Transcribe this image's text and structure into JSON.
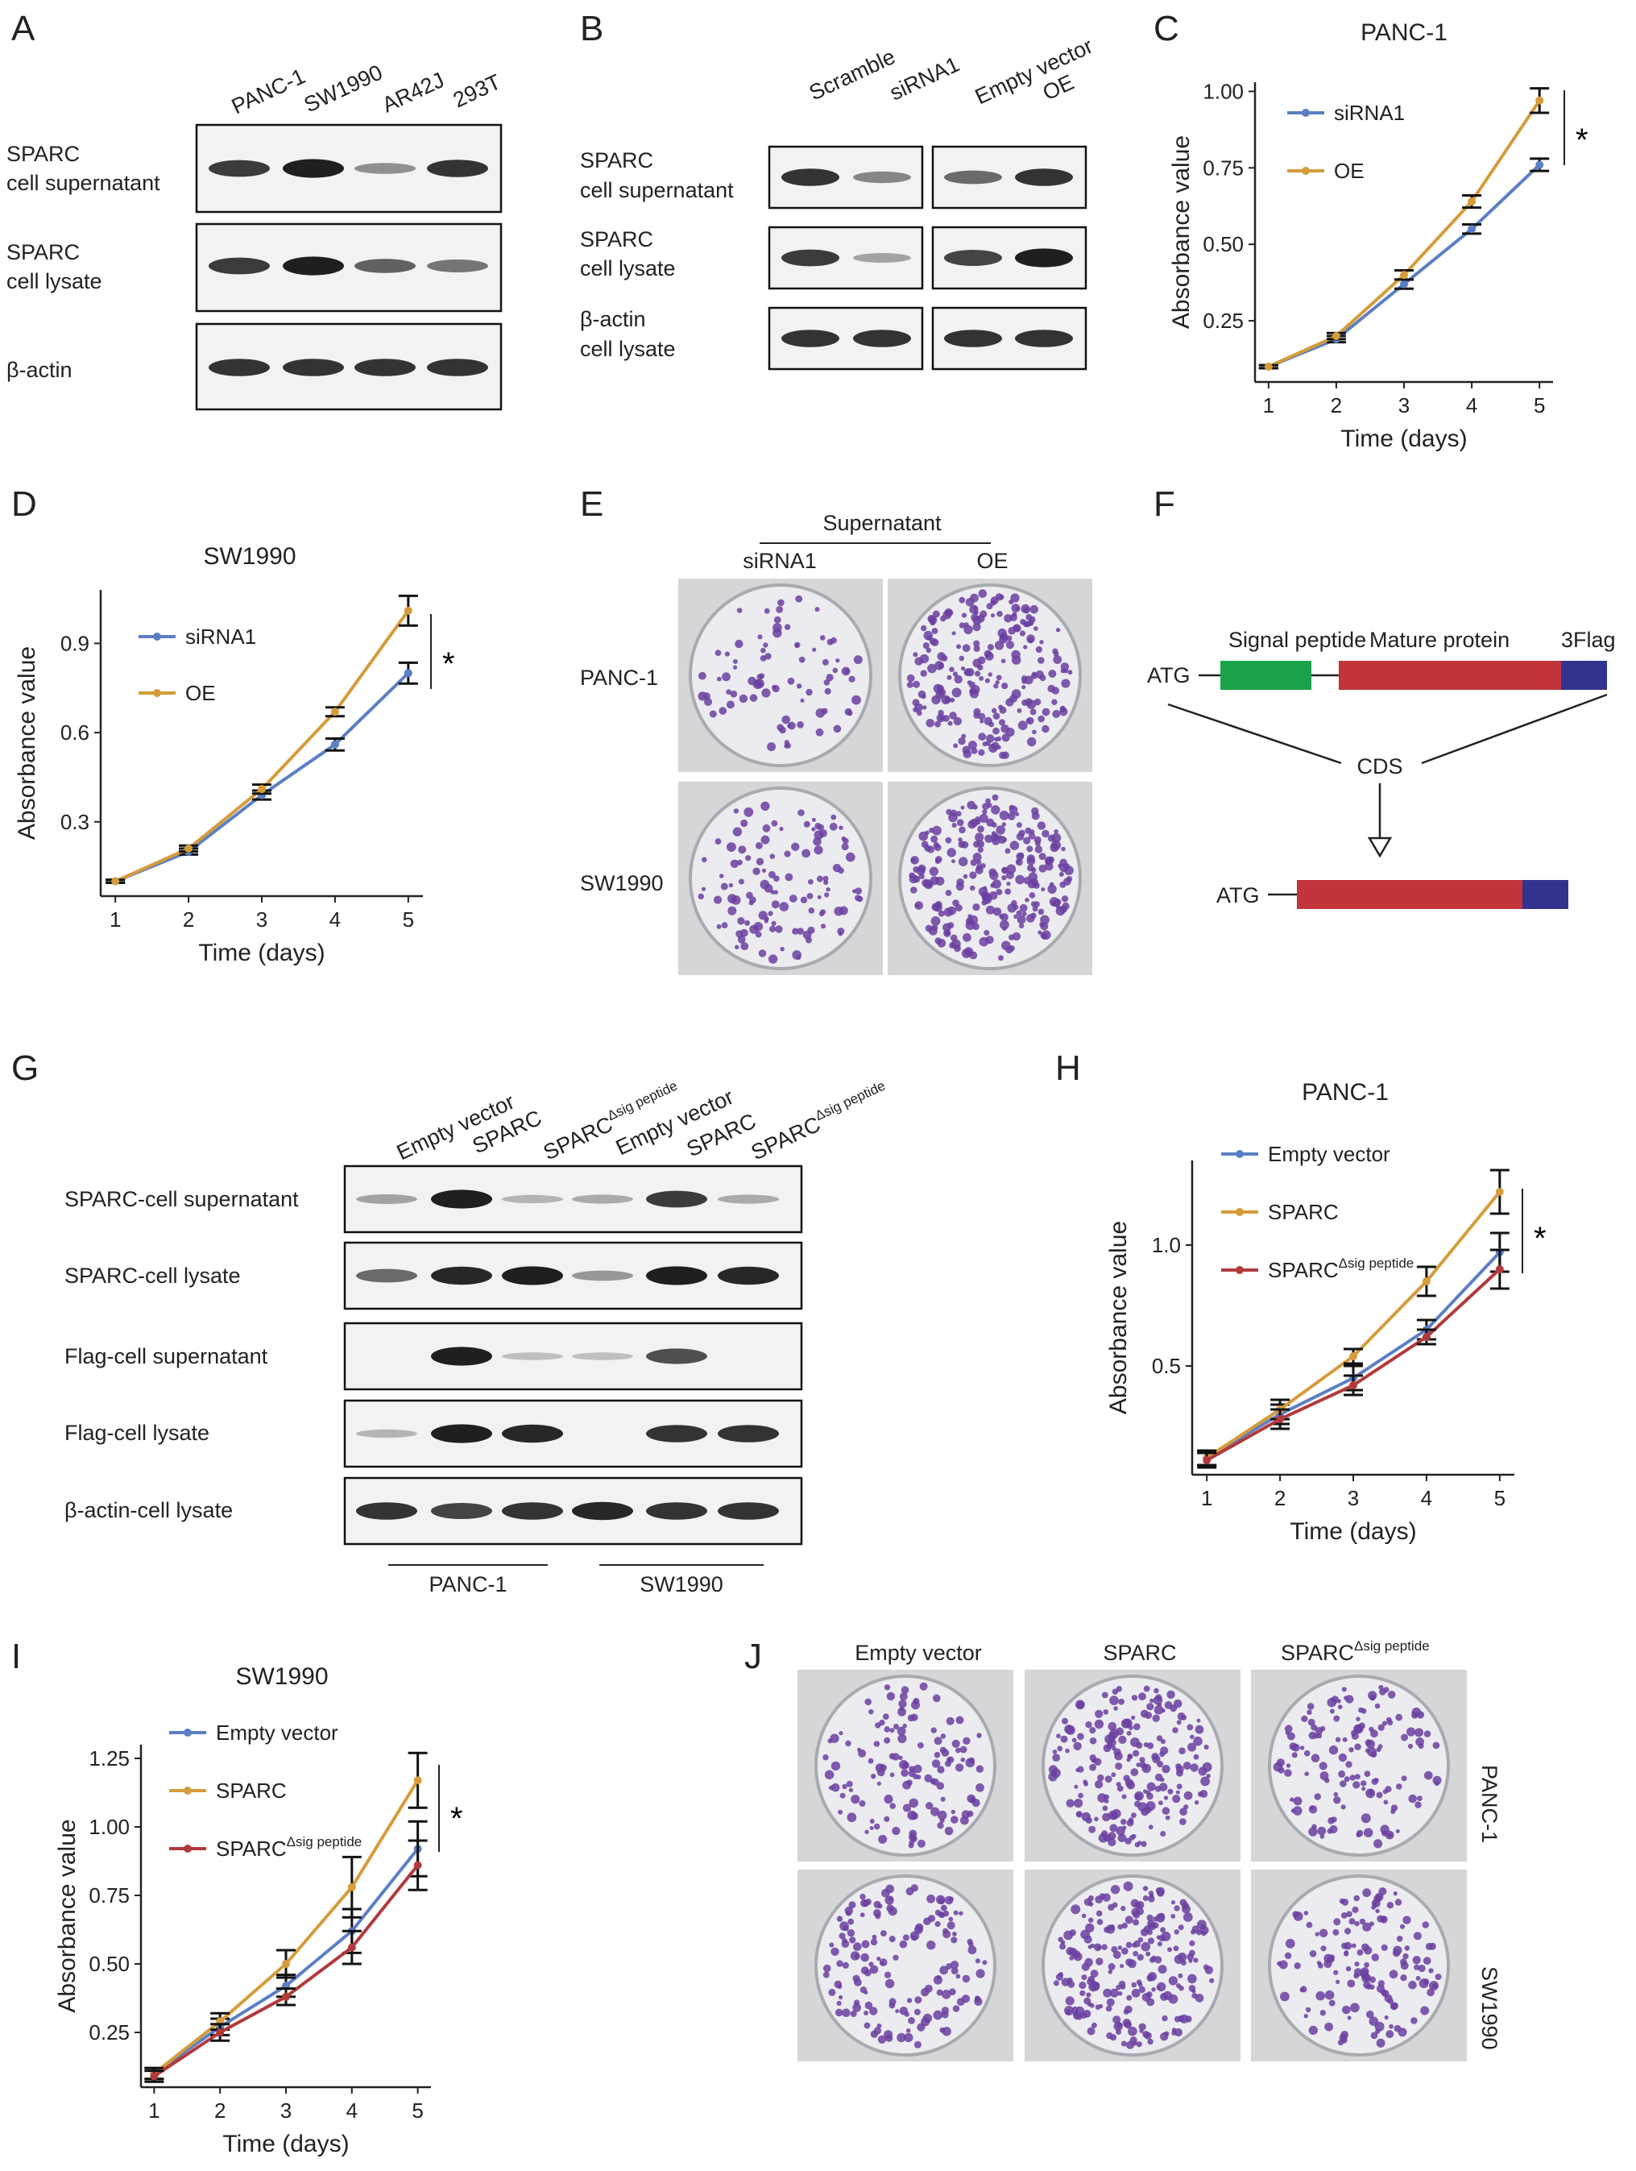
{
  "panel_letters": [
    "A",
    "B",
    "C",
    "D",
    "E",
    "F",
    "G",
    "H",
    "I",
    "J"
  ],
  "panelA": {
    "lanes": [
      "PANC-1",
      "SW1990",
      "AR42J",
      "293T"
    ],
    "rows": [
      {
        "l1": "SPARC",
        "l2": "cell supernatant",
        "bands": [
          0.8,
          0.95,
          0.35,
          0.85
        ]
      },
      {
        "l1": "SPARC",
        "l2": "cell lysate",
        "bands": [
          0.8,
          0.95,
          0.6,
          0.5
        ]
      },
      {
        "l1": "β-actin",
        "l2": "",
        "bands": [
          0.85,
          0.85,
          0.85,
          0.85
        ]
      }
    ]
  },
  "panelB": {
    "lanes": [
      "Scramble",
      "siRNA1",
      "Empty vector",
      "OE"
    ],
    "rows": [
      {
        "l1": "SPARC",
        "l2": "cell supernatant",
        "bands": [
          0.85,
          0.4,
          0.55,
          0.85
        ]
      },
      {
        "l1": "SPARC",
        "l2": "cell lysate",
        "bands": [
          0.8,
          0.25,
          0.75,
          0.95
        ]
      },
      {
        "l1": "β-actin",
        "l2": "cell lysate",
        "bands": [
          0.85,
          0.85,
          0.85,
          0.85
        ]
      }
    ]
  },
  "panelE": {
    "group": "Supernatant",
    "cols": [
      "siRNA1",
      "OE"
    ],
    "rows": [
      "PANC-1",
      "SW1990"
    ],
    "colony_density": [
      [
        0.25,
        0.85
      ],
      [
        0.4,
        0.95
      ]
    ]
  },
  "panelF": {
    "atg": "ATG",
    "signal": "Signal peptide",
    "mature": "Mature protein",
    "flag": "3Flag",
    "cds": "CDS",
    "colors": {
      "signal": "#1aa34a",
      "mature": "#c0343a",
      "flag": "#33338f"
    }
  },
  "panelG": {
    "lanes": [
      {
        "main": "Empty vector",
        "sup": ""
      },
      {
        "main": "SPARC",
        "sup": ""
      },
      {
        "main": "SPARC",
        "sup": "Δsig peptide"
      },
      {
        "main": "Empty vector",
        "sup": ""
      },
      {
        "main": "SPARC",
        "sup": ""
      },
      {
        "main": "SPARC",
        "sup": "Δsig peptide"
      }
    ],
    "rows": [
      {
        "label": "SPARC-cell supernatant",
        "bands": [
          0.25,
          0.95,
          0.15,
          0.2,
          0.8,
          0.2
        ]
      },
      {
        "label": "SPARC-cell lysate",
        "bands": [
          0.55,
          0.9,
          0.95,
          0.3,
          0.95,
          0.9
        ]
      },
      {
        "label": "Flag-cell supernatant",
        "bands": [
          0.0,
          0.95,
          0.1,
          0.1,
          0.7,
          0.0
        ]
      },
      {
        "label": "Flag-cell lysate",
        "bands": [
          0.15,
          0.95,
          0.9,
          0.0,
          0.85,
          0.85
        ]
      },
      {
        "label": "β-actin-cell lysate",
        "bands": [
          0.85,
          0.75,
          0.85,
          0.9,
          0.85,
          0.85
        ]
      }
    ],
    "groups": [
      "PANC-1",
      "SW1990"
    ]
  },
  "panelJ": {
    "cols": [
      {
        "main": "Empty vector",
        "sup": ""
      },
      {
        "main": "SPARC",
        "sup": ""
      },
      {
        "main": "SPARC",
        "sup": "Δsig peptide"
      }
    ],
    "rows": [
      "PANC-1",
      "SW1990"
    ],
    "colony_density": [
      [
        0.45,
        0.75,
        0.5
      ],
      [
        0.55,
        0.85,
        0.5
      ]
    ]
  },
  "chart_data": [
    {
      "panel": "C",
      "type": "line",
      "title": "PANC-1",
      "xlabel": "Time (days)",
      "ylabel": "Absorbance value",
      "x": [
        1,
        2,
        3,
        4,
        5
      ],
      "xlim": [
        0.8,
        5.2
      ],
      "ylim": [
        0.05,
        1.03
      ],
      "yticks": [
        0.25,
        0.5,
        0.75,
        1.0
      ],
      "ytick_labels": [
        "0.25",
        "0.50",
        "0.75",
        "1.00"
      ],
      "series": [
        {
          "name": "siRNA1",
          "color": "#5b7fc4",
          "values": [
            0.1,
            0.19,
            0.37,
            0.55,
            0.76
          ],
          "err": [
            0.005,
            0.01,
            0.015,
            0.015,
            0.02
          ]
        },
        {
          "name": "OE",
          "color": "#d59c3a",
          "values": [
            0.1,
            0.2,
            0.4,
            0.64,
            0.97
          ],
          "err": [
            0.005,
            0.01,
            0.015,
            0.02,
            0.04
          ]
        }
      ],
      "significance": "*"
    },
    {
      "panel": "D",
      "type": "line",
      "title": "SW1990",
      "xlabel": "Time (days)",
      "ylabel": "Absorbance value",
      "x": [
        1,
        2,
        3,
        4,
        5
      ],
      "xlim": [
        0.8,
        5.2
      ],
      "ylim": [
        0.05,
        1.08
      ],
      "yticks": [
        0.3,
        0.6,
        0.9
      ],
      "ytick_labels": [
        "0.3",
        "0.6",
        "0.9"
      ],
      "series": [
        {
          "name": "siRNA1",
          "color": "#5b7fc4",
          "values": [
            0.1,
            0.2,
            0.39,
            0.56,
            0.8
          ],
          "err": [
            0.005,
            0.01,
            0.015,
            0.02,
            0.035
          ]
        },
        {
          "name": "OE",
          "color": "#d59c3a",
          "values": [
            0.1,
            0.21,
            0.41,
            0.67,
            1.01
          ],
          "err": [
            0.005,
            0.01,
            0.015,
            0.015,
            0.05
          ]
        }
      ],
      "significance": "*"
    },
    {
      "panel": "H",
      "type": "line",
      "title": "PANC-1",
      "xlabel": "Time (days)",
      "ylabel": "Absorbance value",
      "x": [
        1,
        2,
        3,
        4,
        5
      ],
      "xlim": [
        0.8,
        5.2
      ],
      "ylim": [
        0.05,
        1.35
      ],
      "yticks": [
        0.5,
        1.0
      ],
      "ytick_labels": [
        "0.5",
        "1.0"
      ],
      "series": [
        {
          "name": "Empty vector",
          "sup": "",
          "color": "#5b7fc4",
          "values": [
            0.12,
            0.3,
            0.45,
            0.65,
            0.97
          ],
          "err": [
            0.03,
            0.04,
            0.05,
            0.04,
            0.08
          ]
        },
        {
          "name": "SPARC",
          "sup": "",
          "color": "#d59c3a",
          "values": [
            0.12,
            0.32,
            0.54,
            0.85,
            1.22
          ],
          "err": [
            0.03,
            0.04,
            0.03,
            0.06,
            0.09
          ]
        },
        {
          "name": "SPARC",
          "sup": "Δsig peptide",
          "color": "#b2393b",
          "values": [
            0.11,
            0.28,
            0.42,
            0.62,
            0.9
          ],
          "err": [
            0.03,
            0.04,
            0.04,
            0.03,
            0.08
          ]
        }
      ],
      "significance": "*"
    },
    {
      "panel": "I",
      "type": "line",
      "title": "SW1990",
      "xlabel": "Time (days)",
      "ylabel": "Absorbance value",
      "x": [
        1,
        2,
        3,
        4,
        5
      ],
      "xlim": [
        0.8,
        5.2
      ],
      "ylim": [
        0.05,
        1.3
      ],
      "yticks": [
        0.25,
        0.5,
        0.75,
        1.0,
        1.25
      ],
      "ytick_labels": [
        "0.25",
        "0.50",
        "0.75",
        "1.00",
        "1.25"
      ],
      "series": [
        {
          "name": "Empty vector",
          "sup": "",
          "color": "#5b7fc4",
          "values": [
            0.1,
            0.27,
            0.42,
            0.62,
            0.92
          ],
          "err": [
            0.02,
            0.03,
            0.04,
            0.08,
            0.1
          ]
        },
        {
          "name": "SPARC",
          "sup": "",
          "color": "#d59c3a",
          "values": [
            0.1,
            0.29,
            0.5,
            0.78,
            1.17
          ],
          "err": [
            0.02,
            0.03,
            0.05,
            0.11,
            0.1
          ]
        },
        {
          "name": "SPARC",
          "sup": "Δsig peptide",
          "color": "#b2393b",
          "values": [
            0.09,
            0.25,
            0.38,
            0.56,
            0.86
          ],
          "err": [
            0.02,
            0.03,
            0.03,
            0.06,
            0.09
          ]
        }
      ],
      "significance": "*"
    }
  ]
}
